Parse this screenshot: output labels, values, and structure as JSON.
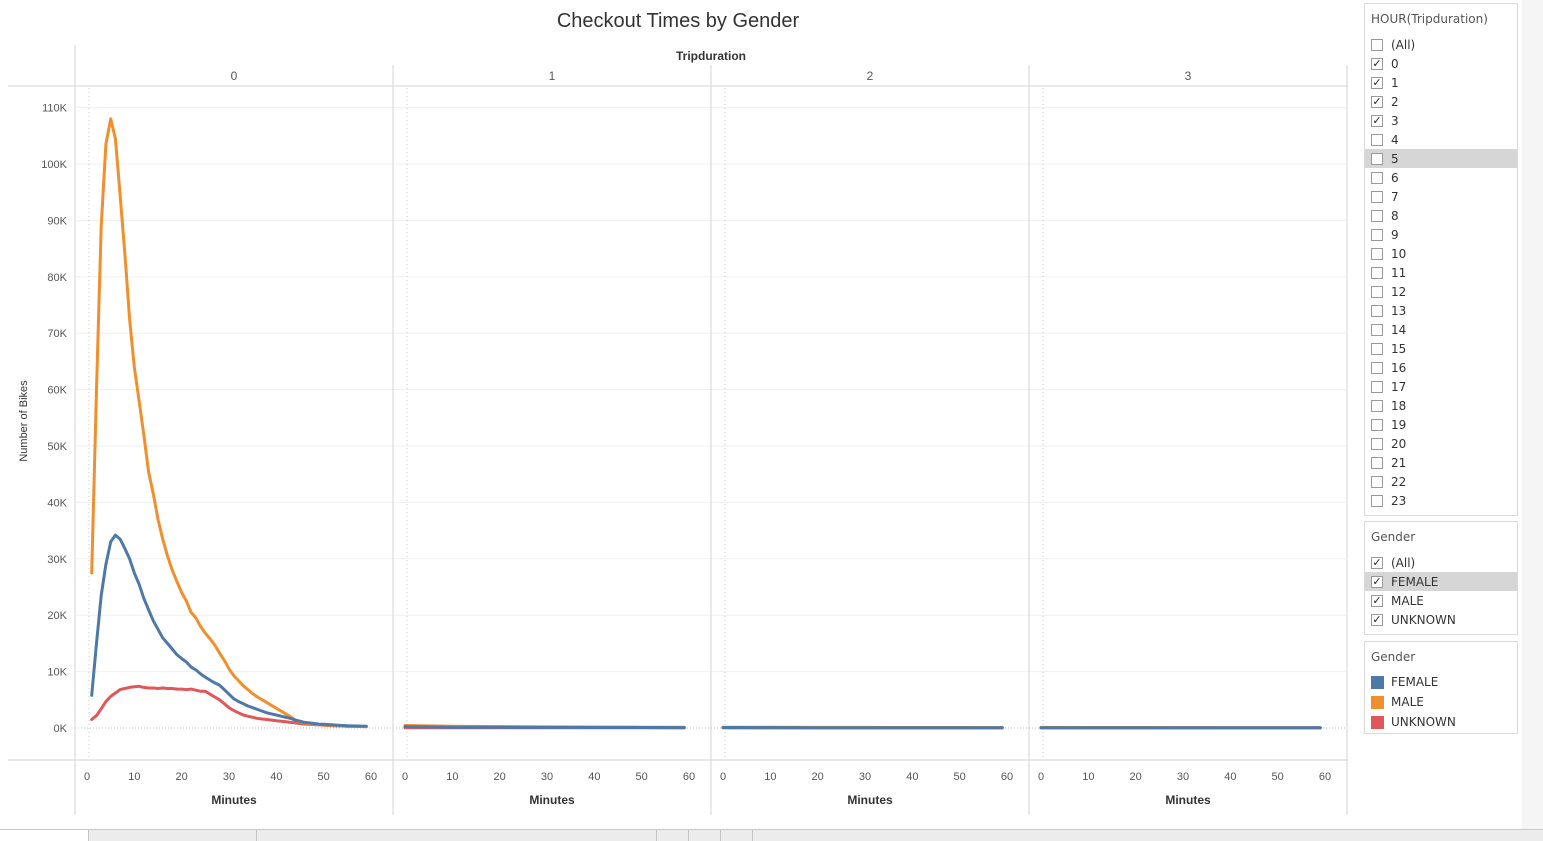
{
  "chart_data": {
    "type": "line",
    "title": "Checkout Times by Gender",
    "column_header": "Tripduration",
    "panels": [
      "0",
      "1",
      "2",
      "3"
    ],
    "xlabel": "Minutes",
    "ylabel": "Number of Bikes",
    "xlim": [
      0,
      60
    ],
    "ylim": [
      -5000,
      115000
    ],
    "xticks": [
      0,
      10,
      20,
      30,
      40,
      50,
      60
    ],
    "yticks": [
      0,
      10000,
      20000,
      30000,
      40000,
      50000,
      60000,
      70000,
      80000,
      90000,
      100000,
      110000
    ],
    "ytick_labels": [
      "0K",
      "10K",
      "20K",
      "30K",
      "40K",
      "50K",
      "60K",
      "70K",
      "80K",
      "90K",
      "100K",
      "110K"
    ],
    "grid": true,
    "legend_position": "right",
    "series": [
      {
        "name": "MALE",
        "color": "#f28e2b",
        "panels": [
          {
            "panel": "0",
            "x": [
              1,
              2,
              3,
              4,
              5,
              6,
              7,
              8,
              9,
              10,
              11,
              12,
              13,
              14,
              15,
              16,
              17,
              18,
              19,
              20,
              21,
              22,
              23,
              24,
              25,
              26,
              27,
              28,
              29,
              30,
              31,
              32,
              33,
              34,
              35,
              36,
              37,
              38,
              39,
              40,
              41,
              42,
              43,
              44,
              45,
              46,
              47,
              48,
              49,
              50,
              51,
              52,
              53,
              54,
              55,
              56,
              57,
              58,
              59
            ],
            "y": [
              27500,
              60000,
              89000,
              103500,
              108000,
              104500,
              94500,
              84000,
              72500,
              64000,
              58000,
              52000,
              45500,
              41500,
              37000,
              33500,
              30500,
              28000,
              26000,
              24000,
              22500,
              20500,
              19500,
              18000,
              16800,
              15800,
              14700,
              13300,
              12000,
              10500,
              9300,
              8400,
              7500,
              6800,
              6100,
              5500,
              5000,
              4500,
              4000,
              3500,
              3000,
              2500,
              2000,
              1400,
              1100,
              900,
              800,
              700,
              600,
              550,
              500,
              450,
              400,
              350,
              320,
              300,
              280,
              260,
              240
            ]
          },
          {
            "panel": "1",
            "x": [
              0,
              10,
              20,
              30,
              40,
              50,
              59
            ],
            "y": [
              450,
              300,
              250,
              200,
              180,
              150,
              140
            ]
          },
          {
            "panel": "2",
            "x": [
              0,
              10,
              20,
              30,
              40,
              50,
              59
            ],
            "y": [
              150,
              120,
              110,
              100,
              90,
              80,
              70
            ]
          },
          {
            "panel": "3",
            "x": [
              0,
              10,
              20,
              30,
              40,
              50,
              59
            ],
            "y": [
              100,
              90,
              80,
              70,
              60,
              50,
              50
            ]
          }
        ]
      },
      {
        "name": "FEMALE",
        "color": "#4e79a7",
        "panels": [
          {
            "panel": "0",
            "x": [
              1,
              2,
              3,
              4,
              5,
              6,
              7,
              8,
              9,
              10,
              11,
              12,
              13,
              14,
              15,
              16,
              17,
              18,
              19,
              20,
              21,
              22,
              23,
              24,
              25,
              26,
              27,
              28,
              29,
              30,
              31,
              32,
              33,
              34,
              35,
              36,
              37,
              38,
              39,
              40,
              41,
              42,
              43,
              44,
              45,
              46,
              47,
              48,
              49,
              50,
              51,
              52,
              53,
              54,
              55,
              56,
              57,
              58,
              59
            ],
            "y": [
              5800,
              15000,
              23500,
              29000,
              33000,
              34200,
              33500,
              31800,
              30000,
              27500,
              25500,
              23000,
              21000,
              19000,
              17500,
              16000,
              15000,
              14000,
              13000,
              12300,
              11700,
              10800,
              10300,
              9600,
              9000,
              8500,
              8000,
              7600,
              6800,
              6000,
              5200,
              4700,
              4300,
              3900,
              3600,
              3300,
              3000,
              2700,
              2500,
              2300,
              2100,
              1900,
              1700,
              1400,
              1200,
              1000,
              900,
              800,
              700,
              650,
              600,
              550,
              500,
              450,
              400,
              380,
              360,
              340,
              320
            ]
          },
          {
            "panel": "1",
            "x": [
              0,
              10,
              20,
              30,
              40,
              50,
              59
            ],
            "y": [
              250,
              150,
              120,
              100,
              90,
              80,
              70
            ]
          },
          {
            "panel": "2",
            "x": [
              0,
              10,
              20,
              30,
              40,
              50,
              59
            ],
            "y": [
              80,
              70,
              60,
              60,
              50,
              50,
              40
            ]
          },
          {
            "panel": "3",
            "x": [
              0,
              10,
              20,
              30,
              40,
              50,
              59
            ],
            "y": [
              60,
              50,
              50,
              40,
              40,
              30,
              30
            ]
          }
        ]
      },
      {
        "name": "UNKNOWN",
        "color": "#e15759",
        "panels": [
          {
            "panel": "0",
            "x": [
              1,
              2,
              3,
              4,
              5,
              6,
              7,
              8,
              9,
              10,
              11,
              12,
              13,
              14,
              15,
              16,
              17,
              18,
              19,
              20,
              21,
              22,
              23,
              24,
              25,
              26,
              27,
              28,
              29,
              30,
              31,
              32,
              33,
              34,
              35,
              36,
              37,
              38,
              39,
              40,
              41,
              42,
              43,
              44,
              45,
              46,
              47,
              48,
              49,
              50,
              51,
              52,
              53,
              54,
              55,
              56,
              57,
              58,
              59
            ],
            "y": [
              1500,
              2200,
              3400,
              4700,
              5600,
              6200,
              6800,
              7000,
              7200,
              7300,
              7400,
              7200,
              7100,
              7100,
              7000,
              7100,
              7000,
              7000,
              6900,
              6900,
              6800,
              6900,
              6700,
              6500,
              6500,
              6000,
              5500,
              5000,
              4300,
              3600,
              3100,
              2700,
              2300,
              2100,
              1900,
              1700,
              1600,
              1500,
              1400,
              1300,
              1200,
              1100,
              1000,
              900,
              800,
              700,
              650,
              600,
              550,
              500,
              450,
              400,
              380,
              350,
              320,
              300,
              280,
              260,
              240
            ]
          },
          {
            "panel": "1",
            "x": [
              0,
              10,
              20,
              30,
              40,
              50,
              59
            ],
            "y": [
              60,
              50,
              40,
              40,
              30,
              30,
              20
            ]
          },
          {
            "panel": "2",
            "x": [
              0,
              10,
              20,
              30,
              40,
              50,
              59
            ],
            "y": [
              20,
              20,
              20,
              10,
              10,
              10,
              10
            ]
          },
          {
            "panel": "3",
            "x": [
              0,
              10,
              20,
              30,
              40,
              50,
              59
            ],
            "y": [
              10,
              10,
              10,
              10,
              10,
              10,
              10
            ]
          }
        ]
      }
    ]
  },
  "filters": {
    "hour": {
      "title": "HOUR(Tripduration)",
      "highlighted": "5",
      "items": [
        {
          "label": "(All)",
          "checked": false
        },
        {
          "label": "0",
          "checked": true
        },
        {
          "label": "1",
          "checked": true
        },
        {
          "label": "2",
          "checked": true
        },
        {
          "label": "3",
          "checked": true
        },
        {
          "label": "4",
          "checked": false
        },
        {
          "label": "5",
          "checked": false
        },
        {
          "label": "6",
          "checked": false
        },
        {
          "label": "7",
          "checked": false
        },
        {
          "label": "8",
          "checked": false
        },
        {
          "label": "9",
          "checked": false
        },
        {
          "label": "10",
          "checked": false
        },
        {
          "label": "11",
          "checked": false
        },
        {
          "label": "12",
          "checked": false
        },
        {
          "label": "13",
          "checked": false
        },
        {
          "label": "14",
          "checked": false
        },
        {
          "label": "15",
          "checked": false
        },
        {
          "label": "16",
          "checked": false
        },
        {
          "label": "17",
          "checked": false
        },
        {
          "label": "18",
          "checked": false
        },
        {
          "label": "19",
          "checked": false
        },
        {
          "label": "20",
          "checked": false
        },
        {
          "label": "21",
          "checked": false
        },
        {
          "label": "22",
          "checked": false
        },
        {
          "label": "23",
          "checked": false
        }
      ]
    },
    "gender": {
      "title": "Gender",
      "highlighted": "FEMALE",
      "items": [
        {
          "label": "(All)",
          "checked": true
        },
        {
          "label": "FEMALE",
          "checked": true
        },
        {
          "label": "MALE",
          "checked": true
        },
        {
          "label": "UNKNOWN",
          "checked": true
        }
      ]
    }
  },
  "legend": {
    "title": "Gender",
    "items": [
      {
        "label": "FEMALE",
        "color": "#4e79a7"
      },
      {
        "label": "MALE",
        "color": "#f28e2b"
      },
      {
        "label": "UNKNOWN",
        "color": "#e15759"
      }
    ]
  },
  "checkmark_glyph": "✓"
}
